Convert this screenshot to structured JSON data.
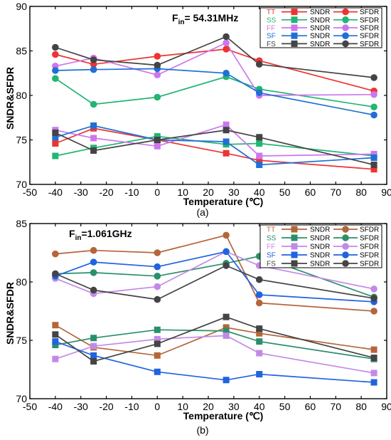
{
  "chart_data": [
    {
      "type": "line",
      "caption": "(a)",
      "title_main": "F",
      "title_sub": "in",
      "title_rest": "= 54.31MHz",
      "xlabel": "Temperature (℃)",
      "ylabel": "SNDR&SFDR",
      "xlim": [
        -50,
        90
      ],
      "ylim": [
        70,
        90
      ],
      "xticks": [
        -50,
        -40,
        -30,
        -20,
        -10,
        0,
        10,
        20,
        30,
        40,
        50,
        60,
        70,
        80,
        90
      ],
      "yticks": [
        70,
        75,
        80,
        85,
        90
      ],
      "x": [
        -40,
        -25,
        0,
        27,
        40,
        85
      ],
      "legend": [
        {
          "corner": "TT",
          "sndr": "SNDR",
          "sfdr": "SFDR"
        },
        {
          "corner": "SS",
          "sndr": "SNDR",
          "sfdr": "SFDR"
        },
        {
          "corner": "FF",
          "sndr": "SNDR",
          "sfdr": "SFDR"
        },
        {
          "corner": "SF",
          "sndr": "SNDR",
          "sfdr": "SFDR"
        },
        {
          "corner": "FS",
          "sndr": "SNDR",
          "sfdr": "SFDR"
        }
      ],
      "series": [
        {
          "corner": "TT",
          "metric": "SNDR",
          "marker": "square",
          "color": "#ee3333",
          "values": [
            74.6,
            76.3,
            75.0,
            73.5,
            72.7,
            71.7
          ]
        },
        {
          "corner": "TT",
          "metric": "SFDR",
          "marker": "circle",
          "color": "#ee3333",
          "values": [
            84.6,
            83.5,
            84.4,
            85.2,
            83.9,
            80.5
          ]
        },
        {
          "corner": "SS",
          "metric": "SNDR",
          "marker": "square",
          "color": "#22b573",
          "values": [
            73.2,
            74.1,
            75.4,
            74.5,
            74.6,
            73.2
          ]
        },
        {
          "corner": "SS",
          "metric": "SFDR",
          "marker": "circle",
          "color": "#22b573",
          "values": [
            81.9,
            79.0,
            79.8,
            82.1,
            80.7,
            78.7
          ]
        },
        {
          "corner": "FF",
          "metric": "SNDR",
          "marker": "square",
          "color": "#cc77ee",
          "values": [
            76.1,
            75.2,
            74.3,
            76.7,
            73.2,
            73.4
          ]
        },
        {
          "corner": "FF",
          "metric": "SFDR",
          "marker": "circle",
          "color": "#cc77ee",
          "values": [
            83.3,
            84.2,
            82.3,
            85.9,
            80.0,
            80.1
          ]
        },
        {
          "corner": "SF",
          "metric": "SNDR",
          "marker": "square",
          "color": "#1f6fd6",
          "values": [
            75.3,
            76.6,
            75.0,
            74.8,
            72.2,
            73.0
          ]
        },
        {
          "corner": "SF",
          "metric": "SFDR",
          "marker": "circle",
          "color": "#1f6fd6",
          "values": [
            82.8,
            82.9,
            83.0,
            82.5,
            80.3,
            77.8
          ]
        },
        {
          "corner": "FS",
          "metric": "SNDR",
          "marker": "square",
          "color": "#444444",
          "values": [
            75.8,
            73.8,
            75.0,
            76.1,
            75.3,
            72.2
          ]
        },
        {
          "corner": "FS",
          "metric": "SFDR",
          "marker": "circle",
          "color": "#444444",
          "values": [
            85.4,
            84.0,
            83.4,
            86.6,
            83.5,
            82.0
          ]
        }
      ]
    },
    {
      "type": "line",
      "caption": "(b)",
      "title_main": "F",
      "title_sub": "in",
      "title_rest": "=1.061GHz",
      "xlabel": "Temperature (℃)",
      "ylabel": "SNDR&SFDR",
      "xlim": [
        -50,
        90
      ],
      "ylim": [
        70,
        85
      ],
      "xticks": [
        -50,
        -40,
        -30,
        -20,
        -10,
        0,
        10,
        20,
        30,
        40,
        50,
        60,
        70,
        80,
        90
      ],
      "yticks": [
        70,
        75,
        80,
        85
      ],
      "x": [
        -40,
        -25,
        0,
        27,
        40,
        85
      ],
      "legend": [
        {
          "corner": "TT",
          "sndr": "SNDR",
          "sfdr": "SFDR"
        },
        {
          "corner": "SS",
          "sndr": "SNDR",
          "sfdr": "SFDR"
        },
        {
          "corner": "FF",
          "sndr": "SNDR",
          "sfdr": "SFDR"
        },
        {
          "corner": "SF",
          "sndr": "SNDR",
          "sfdr": "SFDR"
        },
        {
          "corner": "FS",
          "sndr": "SNDR",
          "sfdr": "SFDR"
        }
      ],
      "series": [
        {
          "corner": "TT",
          "metric": "SNDR",
          "marker": "square",
          "color": "#b5653a",
          "values": [
            76.3,
            74.4,
            73.7,
            76.1,
            75.6,
            74.2
          ]
        },
        {
          "corner": "TT",
          "metric": "SFDR",
          "marker": "circle",
          "color": "#b5653a",
          "values": [
            82.4,
            82.7,
            82.5,
            84.0,
            78.2,
            77.5
          ]
        },
        {
          "corner": "SS",
          "metric": "SNDR",
          "marker": "square",
          "color": "#2a8f6a",
          "values": [
            74.6,
            75.2,
            75.9,
            75.8,
            74.9,
            73.4
          ]
        },
        {
          "corner": "SS",
          "metric": "SFDR",
          "marker": "circle",
          "color": "#2a8f6a",
          "values": [
            80.7,
            80.8,
            80.5,
            81.6,
            82.2,
            78.7
          ]
        },
        {
          "corner": "FF",
          "metric": "SNDR",
          "marker": "square",
          "color": "#c28ae8",
          "values": [
            73.4,
            74.5,
            75.1,
            75.4,
            73.9,
            72.2
          ]
        },
        {
          "corner": "FF",
          "metric": "SFDR",
          "marker": "circle",
          "color": "#c28ae8",
          "values": [
            80.3,
            79.0,
            79.6,
            82.6,
            81.4,
            79.4
          ]
        },
        {
          "corner": "SF",
          "metric": "SNDR",
          "marker": "square",
          "color": "#1f63e0",
          "values": [
            74.9,
            73.7,
            72.3,
            71.6,
            72.1,
            71.4
          ]
        },
        {
          "corner": "SF",
          "metric": "SFDR",
          "marker": "circle",
          "color": "#1f63e0",
          "values": [
            80.5,
            81.7,
            81.3,
            82.6,
            78.9,
            78.3
          ]
        },
        {
          "corner": "FS",
          "metric": "SNDR",
          "marker": "square",
          "color": "#444444",
          "values": [
            75.5,
            73.2,
            74.7,
            77.0,
            76.0,
            73.5
          ]
        },
        {
          "corner": "FS",
          "metric": "SFDR",
          "marker": "circle",
          "color": "#444444",
          "values": [
            80.7,
            79.3,
            78.5,
            81.4,
            80.2,
            78.6
          ]
        }
      ]
    }
  ]
}
